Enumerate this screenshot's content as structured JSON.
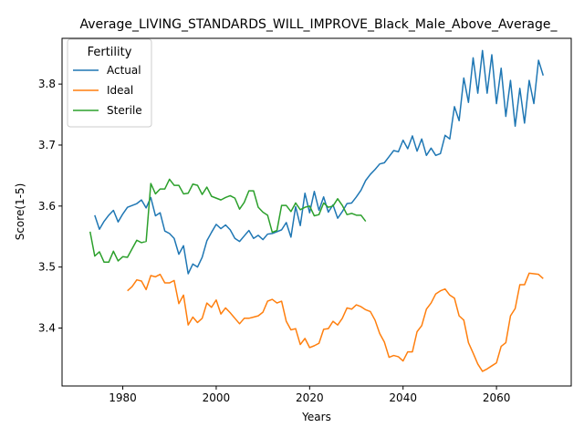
{
  "chart_data": {
    "type": "line",
    "title": "Average_LIVING_STANDARDS_WILL_IMPROVE_Black_Male_Above_Average_",
    "xlabel": "Years",
    "ylabel": "Score(1-5)",
    "xlim": [
      1967,
      2076
    ],
    "ylim": [
      3.305,
      3.875
    ],
    "x_ticks": [
      1980,
      2000,
      2020,
      2040,
      2060
    ],
    "y_ticks": [
      3.4,
      3.5,
      3.6,
      3.7,
      3.8
    ],
    "x_tick_labels": [
      "1980",
      "2000",
      "2020",
      "2040",
      "2060"
    ],
    "y_tick_labels": [
      "3.4",
      "3.5",
      "3.6",
      "3.7",
      "3.8"
    ],
    "grid": false,
    "legend": {
      "title": "Fertility",
      "placement": "top-left"
    },
    "series": [
      {
        "name": "Actual",
        "color": "#1f77b4",
        "x": [
          1974,
          1975,
          1976,
          1977,
          1978,
          1979,
          1980,
          1981,
          1982,
          1983,
          1984,
          1985,
          1986,
          1987,
          1988,
          1989,
          1990,
          1991,
          1992,
          1993,
          1994,
          1995,
          1996,
          1997,
          1998,
          1999,
          2000,
          2001,
          2002,
          2003,
          2004,
          2005,
          2006,
          2007,
          2008,
          2009,
          2010,
          2011,
          2012,
          2013,
          2014,
          2015,
          2016,
          2017,
          2018,
          2019,
          2020,
          2021,
          2022,
          2023,
          2024,
          2025,
          2026,
          2027,
          2028,
          2029,
          2030,
          2031,
          2032,
          2033,
          2034,
          2035,
          2036,
          2037,
          2038,
          2039,
          2040,
          2041,
          2042,
          2043,
          2044,
          2045,
          2046,
          2047,
          2048,
          2049,
          2050,
          2051,
          2052,
          2053,
          2054,
          2055,
          2056,
          2057,
          2058,
          2059,
          2060,
          2061,
          2062,
          2063,
          2064,
          2065,
          2066,
          2067,
          2068,
          2069,
          2070
        ],
        "y": [
          3.585,
          3.562,
          3.575,
          3.585,
          3.593,
          3.574,
          3.587,
          3.598,
          3.601,
          3.604,
          3.61,
          3.597,
          3.614,
          3.584,
          3.589,
          3.559,
          3.555,
          3.547,
          3.521,
          3.535,
          3.489,
          3.505,
          3.5,
          3.516,
          3.543,
          3.557,
          3.57,
          3.563,
          3.569,
          3.561,
          3.547,
          3.542,
          3.551,
          3.56,
          3.547,
          3.552,
          3.545,
          3.554,
          3.555,
          3.558,
          3.561,
          3.573,
          3.549,
          3.599,
          3.568,
          3.621,
          3.589,
          3.624,
          3.593,
          3.615,
          3.59,
          3.602,
          3.58,
          3.591,
          3.604,
          3.605,
          3.615,
          3.626,
          3.642,
          3.652,
          3.66,
          3.669,
          3.671,
          3.681,
          3.691,
          3.689,
          3.708,
          3.694,
          3.715,
          3.69,
          3.71,
          3.683,
          3.695,
          3.683,
          3.686,
          3.716,
          3.71,
          3.763,
          3.74,
          3.81,
          3.77,
          3.843,
          3.785,
          3.855,
          3.785,
          3.848,
          3.768,
          3.826,
          3.747,
          3.806,
          3.731,
          3.793,
          3.736,
          3.806,
          3.768,
          3.839,
          3.814
        ]
      },
      {
        "name": "Ideal",
        "color": "#ff7f0e",
        "x": [
          1981,
          1982,
          1983,
          1984,
          1985,
          1986,
          1987,
          1988,
          1989,
          1990,
          1991,
          1992,
          1993,
          1994,
          1995,
          1996,
          1997,
          1998,
          1999,
          2000,
          2001,
          2002,
          2003,
          2004,
          2005,
          2006,
          2007,
          2008,
          2009,
          2010,
          2011,
          2012,
          2013,
          2014,
          2015,
          2016,
          2017,
          2018,
          2019,
          2020,
          2021,
          2022,
          2023,
          2024,
          2025,
          2026,
          2027,
          2028,
          2029,
          2030,
          2031,
          2032,
          2033,
          2034,
          2035,
          2036,
          2037,
          2038,
          2039,
          2040,
          2041,
          2042,
          2043,
          2044,
          2045,
          2046,
          2047,
          2048,
          2049,
          2050,
          2051,
          2052,
          2053,
          2054,
          2055,
          2056,
          2057,
          2058,
          2059,
          2060,
          2061,
          2062,
          2063,
          2064,
          2065,
          2066,
          2067,
          2068,
          2069,
          2070
        ],
        "y": [
          3.461,
          3.468,
          3.479,
          3.477,
          3.463,
          3.486,
          3.484,
          3.488,
          3.474,
          3.474,
          3.478,
          3.44,
          3.454,
          3.405,
          3.418,
          3.409,
          3.416,
          3.441,
          3.434,
          3.446,
          3.423,
          3.433,
          3.425,
          3.416,
          3.407,
          3.416,
          3.416,
          3.418,
          3.42,
          3.426,
          3.444,
          3.447,
          3.441,
          3.444,
          3.411,
          3.397,
          3.399,
          3.373,
          3.383,
          3.368,
          3.371,
          3.375,
          3.398,
          3.399,
          3.411,
          3.405,
          3.416,
          3.433,
          3.431,
          3.438,
          3.435,
          3.43,
          3.427,
          3.413,
          3.391,
          3.377,
          3.352,
          3.355,
          3.353,
          3.346,
          3.361,
          3.361,
          3.394,
          3.404,
          3.431,
          3.441,
          3.456,
          3.461,
          3.464,
          3.454,
          3.449,
          3.42,
          3.413,
          3.376,
          3.359,
          3.341,
          3.329,
          3.333,
          3.338,
          3.343,
          3.37,
          3.376,
          3.42,
          3.432,
          3.471,
          3.471,
          3.49,
          3.489,
          3.488,
          3.481
        ]
      },
      {
        "name": "Sterile",
        "color": "#2ca02c",
        "x": [
          1973,
          1974,
          1975,
          1976,
          1977,
          1978,
          1979,
          1980,
          1981,
          1982,
          1983,
          1984,
          1985,
          1986,
          1987,
          1988,
          1989,
          1990,
          1991,
          1992,
          1993,
          1994,
          1995,
          1996,
          1997,
          1998,
          1999,
          2000,
          2001,
          2002,
          2003,
          2004,
          2005,
          2006,
          2007,
          2008,
          2009,
          2010,
          2011,
          2012,
          2013,
          2014,
          2015,
          2016,
          2017,
          2018,
          2019,
          2020,
          2021,
          2022,
          2023,
          2024,
          2025,
          2026,
          2027,
          2028,
          2029,
          2030,
          2031,
          2032
        ],
        "y": [
          3.558,
          3.518,
          3.525,
          3.508,
          3.508,
          3.526,
          3.51,
          3.517,
          3.516,
          3.53,
          3.544,
          3.54,
          3.542,
          3.637,
          3.62,
          3.628,
          3.628,
          3.644,
          3.634,
          3.634,
          3.62,
          3.621,
          3.636,
          3.634,
          3.619,
          3.631,
          3.616,
          3.613,
          3.61,
          3.614,
          3.617,
          3.613,
          3.595,
          3.606,
          3.625,
          3.625,
          3.598,
          3.59,
          3.585,
          3.557,
          3.56,
          3.601,
          3.601,
          3.591,
          3.605,
          3.594,
          3.598,
          3.6,
          3.584,
          3.586,
          3.605,
          3.598,
          3.6,
          3.612,
          3.601,
          3.586,
          3.588,
          3.585,
          3.585,
          3.575
        ]
      }
    ]
  }
}
